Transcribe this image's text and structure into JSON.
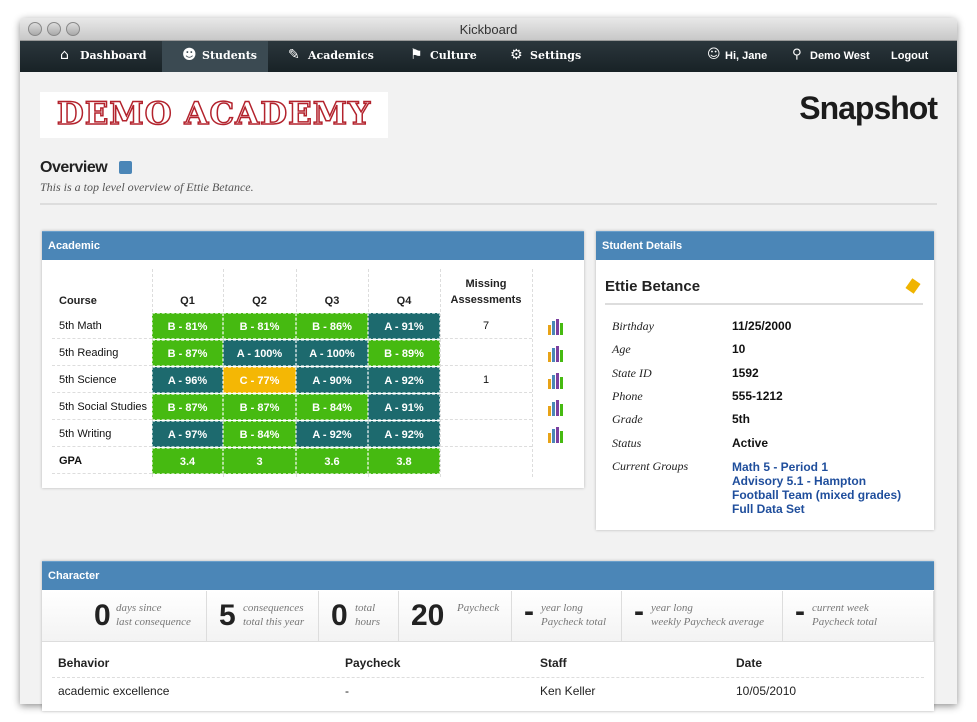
{
  "window": {
    "title": "Kickboard"
  },
  "nav": {
    "left": [
      "Dashboard",
      "Students",
      "Academics",
      "Culture",
      "Settings"
    ],
    "right": [
      "Hi, Jane",
      "Demo West",
      "Logout"
    ]
  },
  "logo": "DEMO ACADEMY",
  "page_title": "Snapshot",
  "overview": {
    "title": "Overview",
    "subtitle": "This is a top level overview of Ettie Betance."
  },
  "academic": {
    "title": "Academic",
    "headers": [
      "Course",
      "Q1",
      "Q2",
      "Q3",
      "Q4",
      "Missing Assessments"
    ],
    "rows": [
      [
        "5th Math",
        "B - 81%",
        "B - 81%",
        "B - 86%",
        "A - 91%",
        7
      ],
      [
        "5th Reading",
        "B - 87%",
        "A - 100%",
        "A - 100%",
        "B - 89%",
        null
      ],
      [
        "5th Science",
        "A - 96%",
        "C - 77%",
        "A - 90%",
        "A - 92%",
        1
      ],
      [
        "5th Social Studies",
        "B - 87%",
        "B - 87%",
        "B - 84%",
        "A - 91%",
        null
      ],
      [
        "5th Writing",
        "A - 97%",
        "B - 84%",
        "A - 92%",
        "A - 92%",
        null
      ]
    ],
    "gpa": {
      "label": "GPA",
      "values": [
        3.4,
        3,
        3.6,
        3.8
      ]
    }
  },
  "student_details": {
    "title": "Student Details",
    "name": "Ettie Betance",
    "fields": [
      {
        "label": "Birthday",
        "value": "11/25/2000"
      },
      {
        "label": "Age",
        "value": 10
      },
      {
        "label": "State ID",
        "value": 1592
      },
      {
        "label": "Phone",
        "value": "555-1212"
      },
      {
        "label": "Grade",
        "value": "5th"
      },
      {
        "label": "Status",
        "value": "Active"
      }
    ],
    "groups_label": "Current Groups",
    "groups": [
      "Math 5 - Period 1",
      "Advisory 5.1 - Hampton",
      "Football Team (mixed grades)",
      "Full Data Set"
    ]
  },
  "character": {
    "title": "Character",
    "stats": [
      {
        "value": 0,
        "text": [
          "days since",
          "last consequence"
        ]
      },
      {
        "value": 5,
        "text": [
          "consequences",
          "total this year"
        ]
      },
      {
        "value": 0,
        "text": [
          "total",
          "hours"
        ]
      },
      {
        "value": 20,
        "text": [
          "Paycheck"
        ]
      },
      {
        "value": "-",
        "text": [
          "year long",
          "Paycheck total"
        ]
      },
      {
        "value": "-",
        "text": [
          "year long",
          "weekly Paycheck average"
        ]
      },
      {
        "value": "-",
        "text": [
          "current week",
          "Paycheck total"
        ]
      }
    ],
    "headers": [
      "Behavior",
      "Paycheck",
      "Staff",
      "Date"
    ],
    "rows": [
      [
        "academic excellence",
        "-",
        "Ken Keller",
        "10/05/2010"
      ]
    ]
  }
}
